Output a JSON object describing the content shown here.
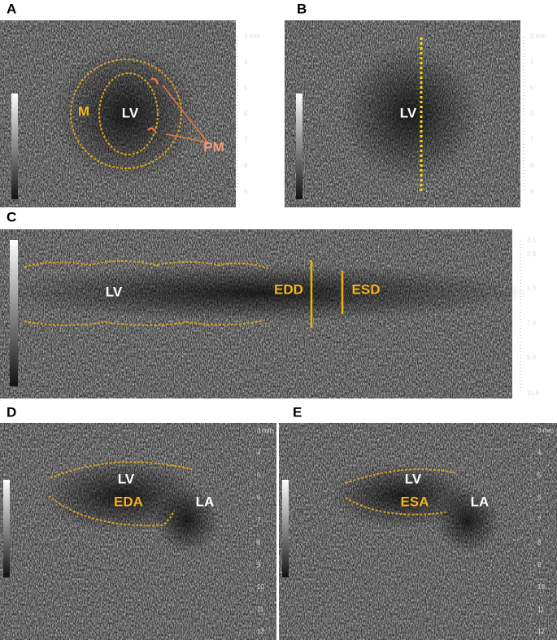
{
  "panels": [
    {
      "letter": "A",
      "labels": [
        "M",
        "LV",
        "PM"
      ],
      "scale": [
        "3 mm",
        "4",
        "5",
        "6",
        "7",
        "8",
        "9"
      ]
    },
    {
      "letter": "B",
      "labels": [
        "LV"
      ],
      "scale": [
        "3 mm",
        "4",
        "5",
        "6",
        "7",
        "8",
        "9"
      ]
    },
    {
      "letter": "C",
      "labels": [
        "LV",
        "EDD",
        "ESD"
      ],
      "scale": [
        "3,1",
        "3,9",
        "5,9",
        "7,9",
        "9,9",
        "11,9"
      ]
    },
    {
      "letter": "D",
      "labels": [
        "LV",
        "EDA",
        "LA"
      ],
      "scale": [
        "3 mm",
        "4",
        "5",
        "6",
        "7",
        "8",
        "9",
        "10",
        "11",
        "12"
      ]
    },
    {
      "letter": "E",
      "labels": [
        "LV",
        "ESA",
        "LA"
      ],
      "scale": [
        "3 mm",
        "4",
        "5",
        "6",
        "7",
        "8",
        "9",
        "10",
        "11",
        "12"
      ]
    }
  ]
}
